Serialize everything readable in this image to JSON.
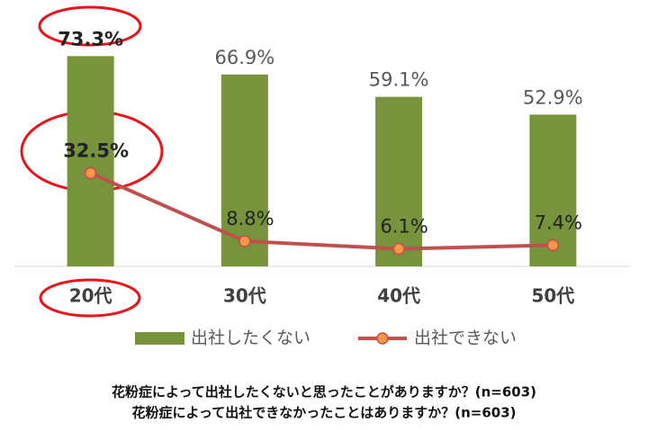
{
  "chart_data": {
    "type": "bar-line",
    "categories": [
      "20代",
      "30代",
      "40代",
      "50代"
    ],
    "series": [
      {
        "name": "出社したくない",
        "type": "bar",
        "color": "#77933c",
        "values": [
          73.3,
          66.9,
          59.1,
          52.9
        ],
        "value_labels": [
          "73.3%",
          "66.9%",
          "59.1%",
          "52.9%"
        ]
      },
      {
        "name": "出社できない",
        "type": "line",
        "color": "#c0504d",
        "marker_color": "#f79646",
        "values": [
          32.5,
          8.8,
          6.1,
          7.4
        ],
        "value_labels": [
          "32.5%",
          "8.8%",
          "6.1%",
          "7.4%"
        ]
      }
    ],
    "ylim": [
      0,
      80
    ],
    "legend": "bottom",
    "caption": [
      "花粉症によって出社したくないと思ったことがありますか？(n=603)",
      "花粉症によって出社できなかったことはありますか？(n=603)"
    ]
  }
}
